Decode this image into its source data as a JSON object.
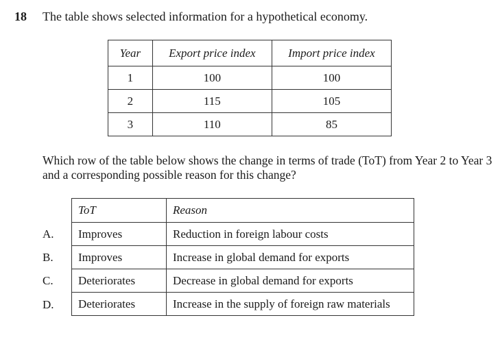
{
  "question": {
    "number": "18",
    "stem": "The table shows selected information for a hypothetical economy.",
    "prompt": "Which row of the table below shows the change in terms of trade (ToT) from Year 2 to Year 3 and a corresponding possible reason for this change?"
  },
  "data_table": {
    "headers": [
      "Year",
      "Export price index",
      "Import price index"
    ],
    "rows": [
      [
        "1",
        "100",
        "100"
      ],
      [
        "2",
        "115",
        "105"
      ],
      [
        "3",
        "110",
        "85"
      ]
    ]
  },
  "options_table": {
    "headers": [
      "ToT",
      "Reason"
    ],
    "rows": [
      {
        "letter": "A.",
        "tot": "Improves",
        "reason": "Reduction in foreign labour costs"
      },
      {
        "letter": "B.",
        "tot": "Improves",
        "reason": "Increase in global demand for exports"
      },
      {
        "letter": "C.",
        "tot": "Deteriorates",
        "reason": "Decrease in global demand for exports"
      },
      {
        "letter": "D.",
        "tot": "Deteriorates",
        "reason": "Increase in the supply of foreign raw materials"
      }
    ]
  }
}
